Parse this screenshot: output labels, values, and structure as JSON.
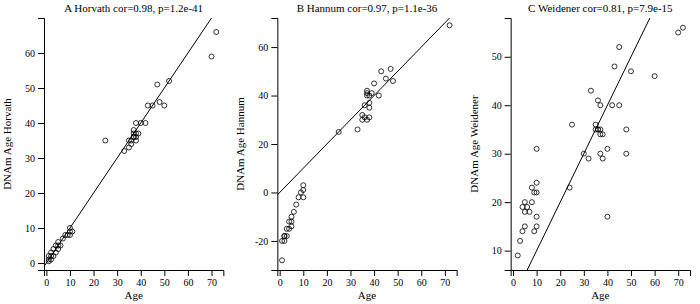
{
  "chart_data": [
    {
      "type": "scatter",
      "title": "A Horvath cor=0.98, p=1.2e-41",
      "xlabel": "Age",
      "ylabel": "DNAm Age Horvath",
      "series": [
        {
          "type": "scatter",
          "color": "black",
          "marker": "open-circle",
          "x": [
            1,
            1,
            1,
            2,
            2,
            2,
            3,
            3,
            4,
            4,
            5,
            5,
            5,
            6,
            7,
            8,
            9,
            10,
            10,
            10,
            11,
            25,
            33,
            35,
            35,
            36,
            36,
            37,
            37,
            37,
            37,
            38,
            38,
            38,
            38,
            39,
            40,
            42,
            43,
            45,
            47,
            48,
            50,
            52,
            70,
            72
          ],
          "values": [
            0.5,
            1,
            2,
            1,
            2,
            3,
            2,
            4,
            3,
            5,
            4,
            5,
            6,
            5,
            7,
            8,
            8,
            8,
            9,
            10,
            9,
            35,
            32,
            33,
            35,
            34,
            35,
            36,
            36,
            37,
            38,
            35,
            36,
            37,
            40,
            37,
            40,
            40,
            45,
            45,
            51,
            46,
            45,
            52,
            59,
            66
          ]
        },
        {
          "type": "identity",
          "color": "black",
          "line_style": "solid"
        }
      ],
      "xlim": [
        -1,
        75
      ],
      "ylim": [
        -2,
        70
      ],
      "xticks": [
        0,
        10,
        20,
        30,
        40,
        50,
        60,
        70
      ],
      "yticks": [
        0,
        10,
        20,
        30,
        40,
        50,
        60
      ],
      "grid": false
    },
    {
      "type": "scatter",
      "title": "B Hannum cor=0.97, p=1.1e-36",
      "xlabel": "Age",
      "ylabel": "DNAm Age Hannum",
      "series": [
        {
          "type": "scatter",
          "color": "black",
          "marker": "open-circle",
          "x": [
            1,
            1,
            2,
            2,
            2,
            3,
            3,
            4,
            4,
            5,
            5,
            5,
            6,
            7,
            8,
            9,
            10,
            10,
            10,
            25,
            33,
            35,
            35,
            36,
            36,
            37,
            37,
            37,
            37,
            38,
            38,
            38,
            38,
            39,
            40,
            42,
            43,
            45,
            47,
            48,
            72
          ],
          "values": [
            -28,
            -20,
            -18,
            -18,
            -20,
            -15,
            -18,
            -12,
            -15,
            -12,
            -10,
            -14,
            -8,
            -5,
            -2,
            0,
            -2,
            1,
            3,
            25,
            26,
            30,
            32,
            31,
            36,
            30,
            40,
            41,
            42,
            35,
            37,
            40,
            31,
            41,
            45,
            40,
            50,
            47,
            51,
            46,
            69
          ]
        },
        {
          "type": "identity",
          "color": "black",
          "line_style": "solid"
        }
      ],
      "xlim": [
        -1,
        75
      ],
      "ylim": [
        -32,
        72
      ],
      "xticks": [
        0,
        10,
        20,
        30,
        40,
        50,
        60,
        70
      ],
      "yticks": [
        -20,
        0,
        20,
        40,
        60
      ],
      "grid": false
    },
    {
      "type": "scatter",
      "title": "C Weidener cor=0.81, p=7.9e-15",
      "xlabel": "Age",
      "ylabel": "DNAm Age Weidener",
      "series": [
        {
          "type": "scatter",
          "color": "black",
          "marker": "open-circle",
          "x": [
            2,
            3,
            4,
            4,
            5,
            5,
            5,
            6,
            7,
            8,
            8,
            9,
            9,
            10,
            10,
            10,
            10,
            10,
            24,
            25,
            30,
            32,
            33,
            35,
            35,
            36,
            36,
            36,
            37,
            37,
            37,
            37,
            38,
            38,
            40,
            40,
            42,
            43,
            45,
            45,
            48,
            48,
            50,
            60,
            70,
            72
          ],
          "values": [
            9,
            12,
            14,
            19,
            15,
            18,
            20,
            19,
            18,
            20,
            23,
            14,
            22,
            15,
            17,
            22,
            24,
            31,
            23,
            36,
            30,
            29,
            43,
            36,
            35,
            35,
            35,
            41,
            34,
            35,
            30,
            40,
            29,
            34,
            17,
            31,
            40,
            48,
            40,
            52,
            30,
            35,
            47,
            46,
            55,
            56
          ]
        },
        {
          "type": "identity",
          "color": "black",
          "line_style": "solid"
        }
      ],
      "xlim": [
        -1,
        75
      ],
      "ylim": [
        6,
        58
      ],
      "xticks": [
        0,
        10,
        20,
        30,
        40,
        50,
        60,
        70
      ],
      "yticks": [
        10,
        20,
        30,
        40,
        50
      ],
      "grid": false
    }
  ]
}
